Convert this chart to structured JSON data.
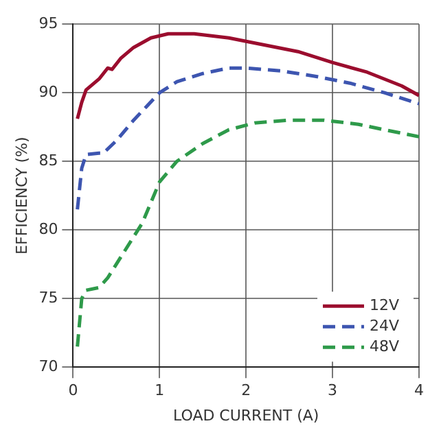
{
  "chart_data": {
    "type": "line",
    "xlabel": "LOAD CURRENT (A)",
    "ylabel": "EFFICIENCY (%)",
    "xlim": [
      0,
      4
    ],
    "xticks": [
      0,
      1,
      2,
      3,
      4
    ],
    "ylim": [
      70,
      95
    ],
    "yticks": [
      70,
      75,
      80,
      85,
      90,
      95
    ],
    "grid": true,
    "legend": "bottom right",
    "marker": "none",
    "series": [
      {
        "name": "12V",
        "color": "#9b0d2e",
        "line_style": "solid",
        "x": [
          0.05,
          0.1,
          0.15,
          0.3,
          0.4,
          0.45,
          0.55,
          0.7,
          0.9,
          1.1,
          1.4,
          1.8,
          2.2,
          2.6,
          3.0,
          3.4,
          3.8,
          4.0
        ],
        "values": [
          88.1,
          89.3,
          90.2,
          91.0,
          91.8,
          91.7,
          92.5,
          93.3,
          94.0,
          94.3,
          94.3,
          94.0,
          93.5,
          93.0,
          92.2,
          91.5,
          90.5,
          89.8
        ]
      },
      {
        "name": "24V",
        "color": "#3d55b0",
        "line_style": "dashed",
        "x": [
          0.05,
          0.1,
          0.15,
          0.3,
          0.35,
          0.5,
          0.7,
          0.85,
          1.0,
          1.2,
          1.5,
          1.8,
          2.0,
          2.4,
          2.8,
          3.2,
          3.6,
          4.0
        ],
        "values": [
          81.5,
          84.5,
          85.5,
          85.6,
          85.6,
          86.5,
          88.0,
          89.0,
          90.0,
          90.8,
          91.4,
          91.8,
          91.8,
          91.6,
          91.2,
          90.7,
          90.0,
          89.2
        ]
      },
      {
        "name": "48V",
        "color": "#2e9a4a",
        "line_style": "dashed",
        "x": [
          0.05,
          0.1,
          0.15,
          0.3,
          0.4,
          0.55,
          0.7,
          0.8,
          0.9,
          1.0,
          1.2,
          1.5,
          1.8,
          2.1,
          2.5,
          2.9,
          3.3,
          3.6,
          4.0
        ],
        "values": [
          71.5,
          75.0,
          75.6,
          75.8,
          76.5,
          78.0,
          79.5,
          80.5,
          82.0,
          83.5,
          85.0,
          86.3,
          87.3,
          87.8,
          88.0,
          88.0,
          87.7,
          87.3,
          86.8
        ]
      }
    ]
  }
}
